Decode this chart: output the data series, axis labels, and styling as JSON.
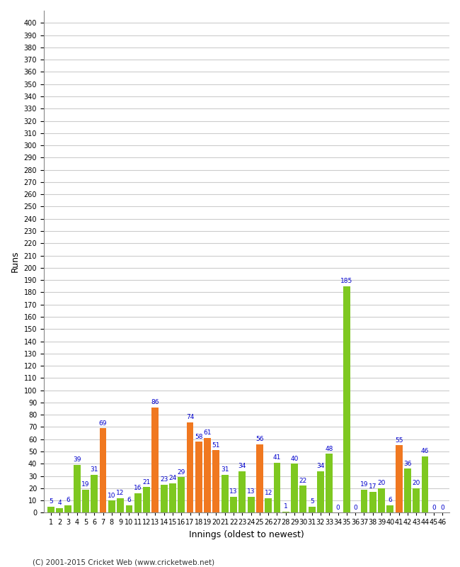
{
  "innings": [
    1,
    2,
    3,
    4,
    5,
    6,
    7,
    8,
    9,
    10,
    11,
    12,
    13,
    14,
    15,
    16,
    17,
    18,
    19,
    20,
    21,
    22,
    23,
    24,
    25,
    26,
    27,
    28,
    29,
    30,
    31,
    32,
    33,
    34,
    35,
    36,
    37,
    38,
    39,
    40,
    41,
    42,
    43,
    44,
    45,
    46
  ],
  "values": [
    5,
    4,
    6,
    39,
    19,
    31,
    69,
    10,
    12,
    6,
    16,
    21,
    86,
    23,
    24,
    29,
    74,
    58,
    61,
    51,
    31,
    13,
    34,
    13,
    56,
    12,
    41,
    1,
    40,
    22,
    5,
    34,
    48,
    0,
    185,
    0,
    19,
    17,
    20,
    6,
    55,
    36,
    20,
    46,
    0,
    0
  ],
  "colors": [
    "#7ec820",
    "#7ec820",
    "#7ec820",
    "#7ec820",
    "#7ec820",
    "#7ec820",
    "#f07820",
    "#7ec820",
    "#7ec820",
    "#7ec820",
    "#7ec820",
    "#7ec820",
    "#f07820",
    "#7ec820",
    "#7ec820",
    "#7ec820",
    "#f07820",
    "#f07820",
    "#f07820",
    "#f07820",
    "#7ec820",
    "#7ec820",
    "#7ec820",
    "#7ec820",
    "#f07820",
    "#7ec820",
    "#7ec820",
    "#7ec820",
    "#7ec820",
    "#7ec820",
    "#7ec820",
    "#7ec820",
    "#7ec820",
    "#7ec820",
    "#7ec820",
    "#dd2020",
    "#7ec820",
    "#7ec820",
    "#7ec820",
    "#7ec820",
    "#f07820",
    "#7ec820",
    "#7ec820",
    "#7ec820",
    "#7ec820",
    "#7ec820"
  ],
  "xlabel": "Innings (oldest to newest)",
  "ylabel": "Runs",
  "ylim": [
    0,
    410
  ],
  "yticks": [
    0,
    10,
    20,
    30,
    40,
    50,
    60,
    70,
    80,
    90,
    100,
    110,
    120,
    130,
    140,
    150,
    160,
    170,
    180,
    190,
    200,
    210,
    220,
    230,
    240,
    250,
    260,
    270,
    280,
    290,
    300,
    310,
    320,
    330,
    340,
    350,
    360,
    370,
    380,
    390,
    400
  ],
  "background_color": "#ffffff",
  "grid_color": "#cccccc",
  "label_color": "#0000cc",
  "label_fontsize": 6.5,
  "tick_fontsize": 7,
  "footer": "(C) 2001-2015 Cricket Web (www.cricketweb.net)"
}
